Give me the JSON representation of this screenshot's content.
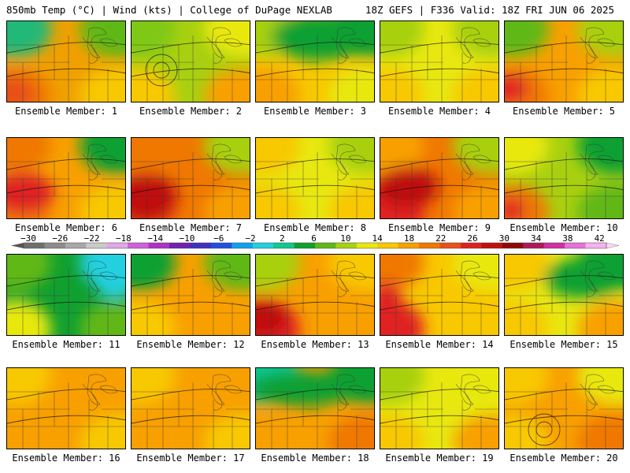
{
  "header": {
    "left_title": "850mb Temp (°C) | Wind (kts) | College of DuPage NEXLAB",
    "right_title": "18Z GEFS | F336 Valid: 18Z FRI JUN 06 2025"
  },
  "colorbar": {
    "tick_labels": [
      "−30",
      "−26",
      "−22",
      "−18",
      "−14",
      "−10",
      "−6",
      "−2",
      "2",
      "6",
      "10",
      "14",
      "18",
      "22",
      "26",
      "30",
      "34",
      "38",
      "42"
    ],
    "colors": [
      "#6e6e6e",
      "#8c8c8c",
      "#a8a8a8",
      "#c9c9c9",
      "#e0a8e8",
      "#d060d8",
      "#b030c8",
      "#7020b0",
      "#4030c0",
      "#2050e0",
      "#10a0f0",
      "#20d0e0",
      "#10c890",
      "#10a030",
      "#60b818",
      "#a8d010",
      "#e8e810",
      "#f8c800",
      "#f8a000",
      "#f07800",
      "#e85018",
      "#e02020",
      "#c01010",
      "#900808",
      "#b01858",
      "#d030a0",
      "#e870d8",
      "#f8b0f0"
    ]
  },
  "panels": [
    {
      "label": "Ensemble Member: 1"
    },
    {
      "label": "Ensemble Member: 2"
    },
    {
      "label": "Ensemble Member: 3"
    },
    {
      "label": "Ensemble Member: 4"
    },
    {
      "label": "Ensemble Member: 5"
    },
    {
      "label": "Ensemble Member: 6"
    },
    {
      "label": "Ensemble Member: 7"
    },
    {
      "label": "Ensemble Member: 8"
    },
    {
      "label": "Ensemble Member: 9"
    },
    {
      "label": "Ensemble Member: 10"
    },
    {
      "label": "Ensemble Member: 11"
    },
    {
      "label": "Ensemble Member: 12"
    },
    {
      "label": "Ensemble Member: 13"
    },
    {
      "label": "Ensemble Member: 14"
    },
    {
      "label": "Ensemble Member: 15"
    },
    {
      "label": "Ensemble Member: 16"
    },
    {
      "label": "Ensemble Member: 17"
    },
    {
      "label": "Ensemble Member: 18"
    },
    {
      "label": "Ensemble Member: 19"
    },
    {
      "label": "Ensemble Member: 20"
    }
  ]
}
